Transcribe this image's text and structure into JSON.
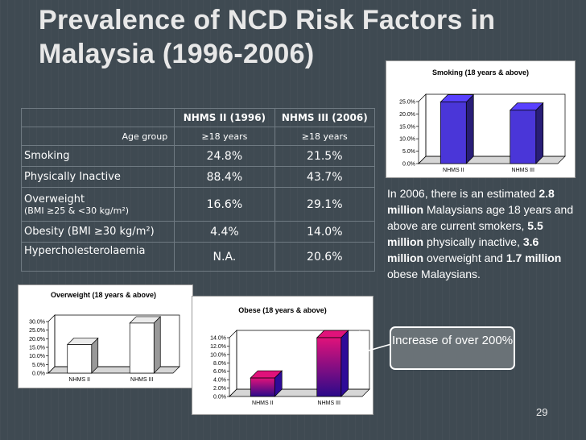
{
  "title": {
    "line1": "Prevalence of NCD Risk Factors in",
    "line2": "Malaysia (1996-2006)"
  },
  "table": {
    "headers": [
      "",
      "NHMS II (1996)",
      "NHMS III (2006)"
    ],
    "age_group": {
      "label": "Age group",
      "v1": "≥18 years",
      "v2": "≥18 years"
    },
    "rows": [
      {
        "label": "Smoking",
        "v1": "24.8%",
        "v2": "21.5%"
      },
      {
        "label": "Physically Inactive",
        "v1": "88.4%",
        "v2": "43.7%"
      },
      {
        "label": "Overweight",
        "label2": "(BMI ≥25 & <30 kg/m²)",
        "v1": "16.6%",
        "v2": "29.1%"
      },
      {
        "label": "Obesity (BMI ≥30 kg/m²)",
        "v1": "4.4%",
        "v2": "14.0%"
      },
      {
        "label": "Hypercholesterolaemia",
        "v1": "N.A.",
        "v2": "20.6%"
      }
    ]
  },
  "info": {
    "t1": "In 2006, there is an estimated ",
    "b1": "2.8 million",
    "t2": " Malaysians age 18 years and above are current smokers, ",
    "b2": "5.5 million",
    "t3": " physically inactive, ",
    "b3": "3.6 million",
    "t4": " overweight and ",
    "b4": "1.7 million",
    "t5": " obese Malaysians."
  },
  "callout": "Increase of over 200%",
  "page_number": "29",
  "colors": {
    "background": "#3f4a52",
    "smoking_bar": "#4a36d8",
    "overweight_bar": "#ffffff",
    "obese_bar_top": "#e0127a",
    "obese_bar_bottom": "#2a0a8a"
  },
  "chart_data": [
    {
      "id": "smoking",
      "type": "bar",
      "title": "Smoking (18 years & above)",
      "categories": [
        "NHMS II",
        "NHMS III"
      ],
      "values": [
        24.8,
        21.5
      ],
      "ylim": [
        0,
        25
      ],
      "yticks": [
        "0.0%",
        "5.0%",
        "10.0%",
        "15.0%",
        "20.0%",
        "25.0%"
      ],
      "grid": false,
      "color": "#4a36d8"
    },
    {
      "id": "overweight",
      "type": "bar",
      "title": "Overweight  (18 years & above)",
      "categories": [
        "NHMS II",
        "NHMS III"
      ],
      "values": [
        16.6,
        29.1
      ],
      "ylim": [
        0,
        30
      ],
      "yticks": [
        "0.0%",
        "5.0%",
        "10.0%",
        "15.0%",
        "20.0%",
        "25.0%",
        "30.0%"
      ],
      "grid": false,
      "color": "#ffffff"
    },
    {
      "id": "obese",
      "type": "bar",
      "title": "Obese (18 years & above)",
      "categories": [
        "NHMS II",
        "NHMS III"
      ],
      "values": [
        4.4,
        14.0
      ],
      "ylim": [
        0,
        14
      ],
      "yticks": [
        "0.0%",
        "2.0%",
        "4.0%",
        "6.0%",
        "8.0%",
        "10.0%",
        "12.0%",
        "14.0%"
      ],
      "grid": false,
      "color": "#b0108a"
    }
  ]
}
